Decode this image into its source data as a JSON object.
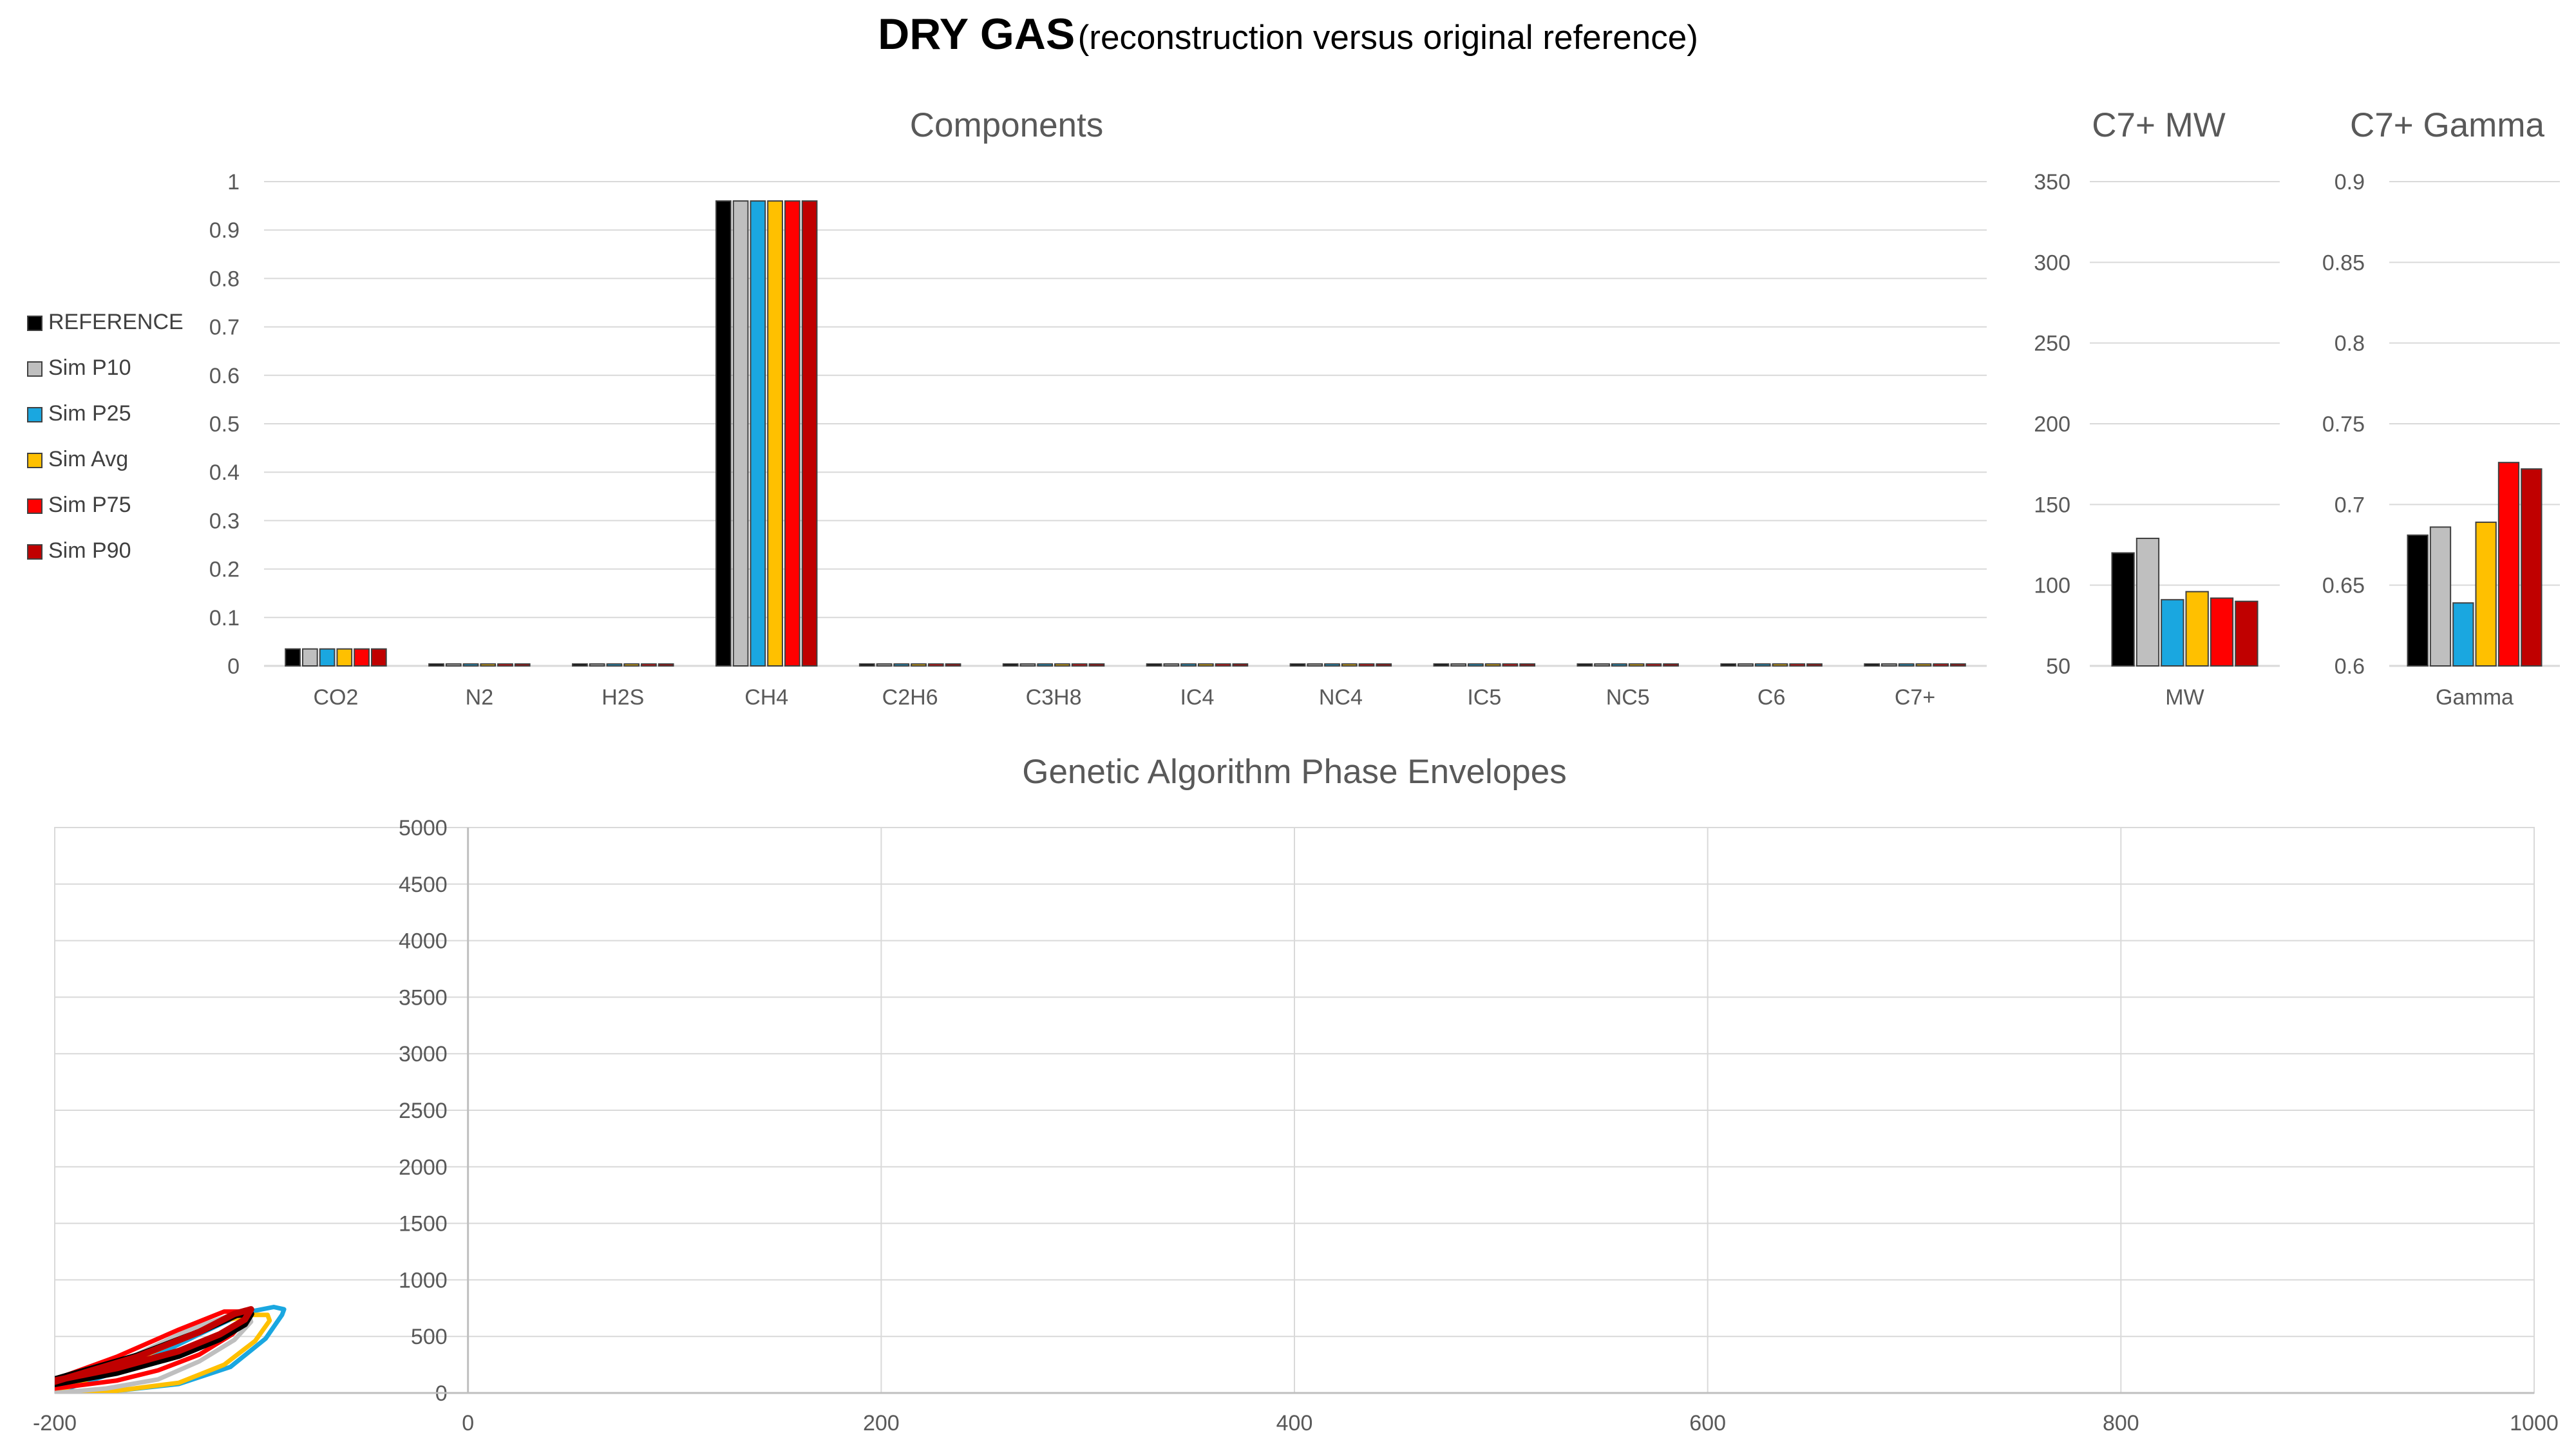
{
  "title": {
    "main": "DRY GAS",
    "sub": "(reconstruction versus original reference)"
  },
  "colors": {
    "REFERENCE": "#000000",
    "Sim P10": "#bfbfbf",
    "Sim P25": "#1aa7e0",
    "Sim Avg": "#ffc000",
    "Sim P75": "#ff0000",
    "Sim P90": "#c00000"
  },
  "chart_data": [
    {
      "type": "bar",
      "title": "Components",
      "categories": [
        "CO2",
        "N2",
        "H2S",
        "CH4",
        "C2H6",
        "C3H8",
        "IC4",
        "NC4",
        "IC5",
        "NC5",
        "C6",
        "C7+"
      ],
      "ylim": [
        0,
        1
      ],
      "yticks": [
        0,
        0.1,
        0.2,
        0.3,
        0.4,
        0.5,
        0.6,
        0.7,
        0.8,
        0.9,
        1
      ],
      "legend_position": "left",
      "series": [
        {
          "name": "REFERENCE",
          "values": [
            0.035,
            0.004,
            0,
            0.96,
            0.001,
            0.001,
            0.001,
            0.001,
            0.001,
            0.001,
            0.001,
            0.001
          ]
        },
        {
          "name": "Sim P10",
          "values": [
            0.035,
            0.004,
            0,
            0.96,
            0.001,
            0.001,
            0.001,
            0.001,
            0.001,
            0.001,
            0.001,
            0.001
          ]
        },
        {
          "name": "Sim P25",
          "values": [
            0.035,
            0.004,
            0,
            0.96,
            0.001,
            0.001,
            0.001,
            0.001,
            0.001,
            0.001,
            0.001,
            0.001
          ]
        },
        {
          "name": "Sim Avg",
          "values": [
            0.035,
            0.004,
            0,
            0.96,
            0.001,
            0.001,
            0.001,
            0.001,
            0.001,
            0.001,
            0.001,
            0.001
          ]
        },
        {
          "name": "Sim P75",
          "values": [
            0.035,
            0.004,
            0,
            0.96,
            0.001,
            0.001,
            0.001,
            0.001,
            0.001,
            0.001,
            0.001,
            0.001
          ]
        },
        {
          "name": "Sim P90",
          "values": [
            0.035,
            0.004,
            0,
            0.96,
            0.001,
            0.001,
            0.001,
            0.001,
            0.001,
            0.001,
            0.001,
            0.001
          ]
        }
      ]
    },
    {
      "type": "bar",
      "title": "C7+ MW",
      "categories": [
        "MW"
      ],
      "ylim": [
        50,
        350
      ],
      "yticks": [
        50,
        100,
        150,
        200,
        250,
        300,
        350
      ],
      "series": [
        {
          "name": "REFERENCE",
          "values": [
            120
          ]
        },
        {
          "name": "Sim P10",
          "values": [
            129
          ]
        },
        {
          "name": "Sim P25",
          "values": [
            91
          ]
        },
        {
          "name": "Sim Avg",
          "values": [
            96
          ]
        },
        {
          "name": "Sim P75",
          "values": [
            92
          ]
        },
        {
          "name": "Sim P90",
          "values": [
            90
          ]
        }
      ]
    },
    {
      "type": "bar",
      "title": "C7+ Gamma",
      "categories": [
        "Gamma"
      ],
      "ylim": [
        0.6,
        0.9
      ],
      "yticks": [
        0.6,
        0.65,
        0.7,
        0.75,
        0.8,
        0.85,
        0.9
      ],
      "series": [
        {
          "name": "REFERENCE",
          "values": [
            0.681
          ]
        },
        {
          "name": "Sim P10",
          "values": [
            0.686
          ]
        },
        {
          "name": "Sim P25",
          "values": [
            0.639
          ]
        },
        {
          "name": "Sim Avg",
          "values": [
            0.689
          ]
        },
        {
          "name": "Sim P75",
          "values": [
            0.726
          ]
        },
        {
          "name": "Sim P90",
          "values": [
            0.722
          ]
        }
      ]
    },
    {
      "type": "line",
      "title": "Genetic Algorithm Phase Envelopes",
      "xlim": [
        -200,
        1000
      ],
      "ylim": [
        0,
        5000
      ],
      "xticks": [
        -200,
        0,
        200,
        400,
        600,
        800,
        1000
      ],
      "yticks": [
        0,
        500,
        1000,
        1500,
        2000,
        2500,
        3000,
        3500,
        4000,
        4500,
        5000
      ],
      "grid": true,
      "series": [
        {
          "name": "Sim P25",
          "x": [
            -200,
            -170,
            -140,
            -115,
            -98,
            -90,
            -89,
            -94,
            -108,
            -130,
            -160,
            -200
          ],
          "y": [
            0,
            20,
            80,
            230,
            480,
            690,
            740,
            760,
            710,
            520,
            250,
            0
          ]
        },
        {
          "name": "Sim Avg",
          "x": [
            -200,
            -170,
            -140,
            -118,
            -103,
            -96,
            -97,
            -104,
            -118,
            -145,
            -175,
            -200
          ],
          "y": [
            0,
            20,
            90,
            250,
            460,
            640,
            690,
            690,
            640,
            420,
            190,
            0
          ]
        },
        {
          "name": "Sim P10",
          "x": [
            -200,
            -175,
            -150,
            -130,
            -113,
            -105,
            -106,
            -113,
            -135,
            -165,
            -200
          ],
          "y": [
            0,
            40,
            120,
            280,
            470,
            630,
            690,
            700,
            560,
            300,
            50
          ]
        },
        {
          "name": "Sim P75",
          "x": [
            -200,
            -170,
            -150,
            -130,
            -114,
            -106,
            -108,
            -118,
            -140,
            -170,
            -200
          ],
          "y": [
            40,
            110,
            200,
            340,
            520,
            680,
            720,
            720,
            560,
            320,
            120
          ]
        },
        {
          "name": "REFERENCE",
          "x": [
            -200,
            -170,
            -140,
            -120,
            -108,
            -105,
            -112,
            -130,
            -160,
            -200
          ],
          "y": [
            80,
            180,
            330,
            480,
            610,
            700,
            690,
            540,
            330,
            120
          ]
        },
        {
          "name": "Sim P90",
          "x": [
            -200,
            -170,
            -140,
            -120,
            -108,
            -105,
            -113,
            -130,
            -160,
            -200
          ],
          "y": [
            110,
            220,
            370,
            520,
            650,
            740,
            700,
            540,
            320,
            100
          ]
        }
      ]
    }
  ]
}
